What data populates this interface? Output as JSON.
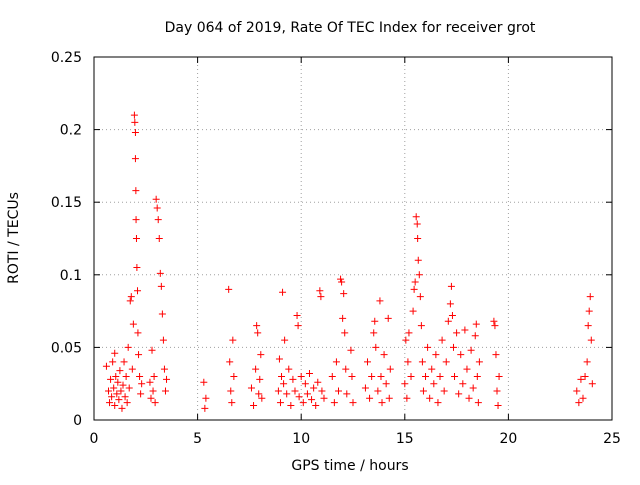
{
  "chart_data": {
    "type": "scatter",
    "title": "Day 064 of 2019, Rate Of TEC Index for receiver grot",
    "xlabel": "GPS time / hours",
    "ylabel": "ROTI / TECUs",
    "xlim": [
      0,
      25
    ],
    "ylim": [
      0,
      0.25
    ],
    "x_ticks": [
      0,
      5,
      10,
      15,
      20,
      25
    ],
    "y_ticks": [
      0,
      0.05,
      0.1,
      0.15,
      0.2,
      0.25
    ],
    "x_tick_labels": [
      "0",
      "5",
      "10",
      "15",
      "20",
      "25"
    ],
    "y_tick_labels": [
      "0",
      "0.05",
      "0.1",
      "0.15",
      "0.2",
      "0.25"
    ],
    "grid": true,
    "legend": "none",
    "marker": "+",
    "color": "#ff0000",
    "series": [
      {
        "points": [
          [
            0.6,
            0.037
          ],
          [
            0.7,
            0.02
          ],
          [
            0.75,
            0.012
          ],
          [
            0.8,
            0.028
          ],
          [
            0.85,
            0.016
          ],
          [
            0.9,
            0.04
          ],
          [
            0.95,
            0.022
          ],
          [
            1.0,
            0.01
          ],
          [
            1.0,
            0.046
          ],
          [
            1.05,
            0.03
          ],
          [
            1.1,
            0.018
          ],
          [
            1.15,
            0.026
          ],
          [
            1.2,
            0.014
          ],
          [
            1.25,
            0.034
          ],
          [
            1.3,
            0.02
          ],
          [
            1.35,
            0.008
          ],
          [
            1.4,
            0.024
          ],
          [
            1.45,
            0.04
          ],
          [
            1.5,
            0.016
          ],
          [
            1.55,
            0.03
          ],
          [
            1.6,
            0.012
          ],
          [
            1.65,
            0.05
          ],
          [
            1.7,
            0.022
          ],
          [
            1.75,
            0.082
          ],
          [
            1.8,
            0.085
          ],
          [
            1.85,
            0.035
          ],
          [
            1.9,
            0.066
          ],
          [
            1.95,
            0.21
          ],
          [
            1.97,
            0.205
          ],
          [
            2.0,
            0.198
          ],
          [
            2.0,
            0.18
          ],
          [
            2.02,
            0.158
          ],
          [
            2.03,
            0.138
          ],
          [
            2.05,
            0.125
          ],
          [
            2.07,
            0.105
          ],
          [
            2.1,
            0.089
          ],
          [
            2.12,
            0.06
          ],
          [
            2.15,
            0.045
          ],
          [
            2.2,
            0.03
          ],
          [
            2.25,
            0.018
          ],
          [
            2.3,
            0.025
          ],
          [
            2.7,
            0.026
          ],
          [
            2.75,
            0.015
          ],
          [
            2.8,
            0.048
          ],
          [
            2.85,
            0.02
          ],
          [
            2.9,
            0.03
          ],
          [
            2.95,
            0.012
          ],
          [
            3.0,
            0.152
          ],
          [
            3.05,
            0.146
          ],
          [
            3.1,
            0.138
          ],
          [
            3.15,
            0.125
          ],
          [
            3.2,
            0.101
          ],
          [
            3.25,
            0.092
          ],
          [
            3.3,
            0.073
          ],
          [
            3.35,
            0.055
          ],
          [
            3.4,
            0.035
          ],
          [
            3.45,
            0.02
          ],
          [
            3.5,
            0.028
          ],
          [
            5.3,
            0.026
          ],
          [
            5.35,
            0.008
          ],
          [
            5.4,
            0.015
          ],
          [
            6.5,
            0.09
          ],
          [
            6.55,
            0.04
          ],
          [
            6.6,
            0.02
          ],
          [
            6.65,
            0.012
          ],
          [
            6.7,
            0.055
          ],
          [
            6.75,
            0.03
          ],
          [
            7.6,
            0.022
          ],
          [
            7.7,
            0.01
          ],
          [
            7.8,
            0.035
          ],
          [
            7.85,
            0.065
          ],
          [
            7.9,
            0.06
          ],
          [
            7.95,
            0.018
          ],
          [
            8.0,
            0.028
          ],
          [
            8.05,
            0.045
          ],
          [
            8.1,
            0.015
          ],
          [
            8.9,
            0.02
          ],
          [
            8.95,
            0.042
          ],
          [
            9.0,
            0.012
          ],
          [
            9.05,
            0.03
          ],
          [
            9.1,
            0.088
          ],
          [
            9.15,
            0.025
          ],
          [
            9.2,
            0.055
          ],
          [
            9.3,
            0.018
          ],
          [
            9.4,
            0.035
          ],
          [
            9.5,
            0.01
          ],
          [
            9.6,
            0.028
          ],
          [
            9.7,
            0.02
          ],
          [
            9.8,
            0.072
          ],
          [
            9.85,
            0.065
          ],
          [
            9.9,
            0.016
          ],
          [
            10.0,
            0.03
          ],
          [
            10.1,
            0.012
          ],
          [
            10.2,
            0.025
          ],
          [
            10.3,
            0.018
          ],
          [
            10.4,
            0.032
          ],
          [
            10.5,
            0.014
          ],
          [
            10.6,
            0.022
          ],
          [
            10.7,
            0.01
          ],
          [
            10.8,
            0.026
          ],
          [
            10.9,
            0.089
          ],
          [
            10.95,
            0.085
          ],
          [
            11.0,
            0.02
          ],
          [
            11.1,
            0.015
          ],
          [
            11.5,
            0.03
          ],
          [
            11.6,
            0.012
          ],
          [
            11.7,
            0.04
          ],
          [
            11.8,
            0.02
          ],
          [
            11.9,
            0.097
          ],
          [
            11.95,
            0.095
          ],
          [
            12.0,
            0.07
          ],
          [
            12.05,
            0.087
          ],
          [
            12.1,
            0.06
          ],
          [
            12.15,
            0.035
          ],
          [
            12.2,
            0.018
          ],
          [
            12.4,
            0.048
          ],
          [
            12.45,
            0.03
          ],
          [
            12.5,
            0.012
          ],
          [
            13.1,
            0.022
          ],
          [
            13.2,
            0.04
          ],
          [
            13.3,
            0.015
          ],
          [
            13.4,
            0.03
          ],
          [
            13.5,
            0.06
          ],
          [
            13.55,
            0.068
          ],
          [
            13.6,
            0.05
          ],
          [
            13.7,
            0.02
          ],
          [
            13.8,
            0.082
          ],
          [
            13.85,
            0.03
          ],
          [
            13.9,
            0.012
          ],
          [
            14.0,
            0.045
          ],
          [
            14.1,
            0.025
          ],
          [
            14.2,
            0.07
          ],
          [
            14.25,
            0.015
          ],
          [
            14.3,
            0.035
          ],
          [
            15.0,
            0.025
          ],
          [
            15.05,
            0.055
          ],
          [
            15.1,
            0.015
          ],
          [
            15.15,
            0.04
          ],
          [
            15.2,
            0.06
          ],
          [
            15.3,
            0.03
          ],
          [
            15.4,
            0.075
          ],
          [
            15.45,
            0.09
          ],
          [
            15.5,
            0.095
          ],
          [
            15.55,
            0.14
          ],
          [
            15.6,
            0.135
          ],
          [
            15.62,
            0.125
          ],
          [
            15.65,
            0.11
          ],
          [
            15.7,
            0.1
          ],
          [
            15.75,
            0.085
          ],
          [
            15.8,
            0.065
          ],
          [
            15.85,
            0.04
          ],
          [
            15.9,
            0.02
          ],
          [
            16.0,
            0.03
          ],
          [
            16.1,
            0.05
          ],
          [
            16.2,
            0.015
          ],
          [
            16.3,
            0.035
          ],
          [
            16.4,
            0.025
          ],
          [
            16.5,
            0.045
          ],
          [
            16.6,
            0.012
          ],
          [
            16.7,
            0.03
          ],
          [
            16.8,
            0.055
          ],
          [
            16.9,
            0.02
          ],
          [
            17.0,
            0.04
          ],
          [
            17.1,
            0.068
          ],
          [
            17.2,
            0.08
          ],
          [
            17.25,
            0.092
          ],
          [
            17.3,
            0.072
          ],
          [
            17.35,
            0.05
          ],
          [
            17.4,
            0.03
          ],
          [
            17.5,
            0.06
          ],
          [
            17.6,
            0.018
          ],
          [
            17.7,
            0.045
          ],
          [
            17.8,
            0.025
          ],
          [
            17.9,
            0.062
          ],
          [
            18.0,
            0.035
          ],
          [
            18.1,
            0.015
          ],
          [
            18.2,
            0.048
          ],
          [
            18.3,
            0.022
          ],
          [
            18.4,
            0.058
          ],
          [
            18.45,
            0.066
          ],
          [
            18.5,
            0.03
          ],
          [
            18.55,
            0.012
          ],
          [
            18.6,
            0.04
          ],
          [
            19.3,
            0.068
          ],
          [
            19.35,
            0.065
          ],
          [
            19.4,
            0.045
          ],
          [
            19.45,
            0.02
          ],
          [
            19.5,
            0.01
          ],
          [
            19.55,
            0.03
          ],
          [
            23.3,
            0.02
          ],
          [
            23.4,
            0.012
          ],
          [
            23.5,
            0.028
          ],
          [
            23.6,
            0.015
          ],
          [
            23.7,
            0.03
          ],
          [
            23.8,
            0.04
          ],
          [
            23.85,
            0.065
          ],
          [
            23.9,
            0.075
          ],
          [
            23.95,
            0.085
          ],
          [
            24.0,
            0.055
          ],
          [
            24.05,
            0.025
          ]
        ]
      }
    ]
  }
}
